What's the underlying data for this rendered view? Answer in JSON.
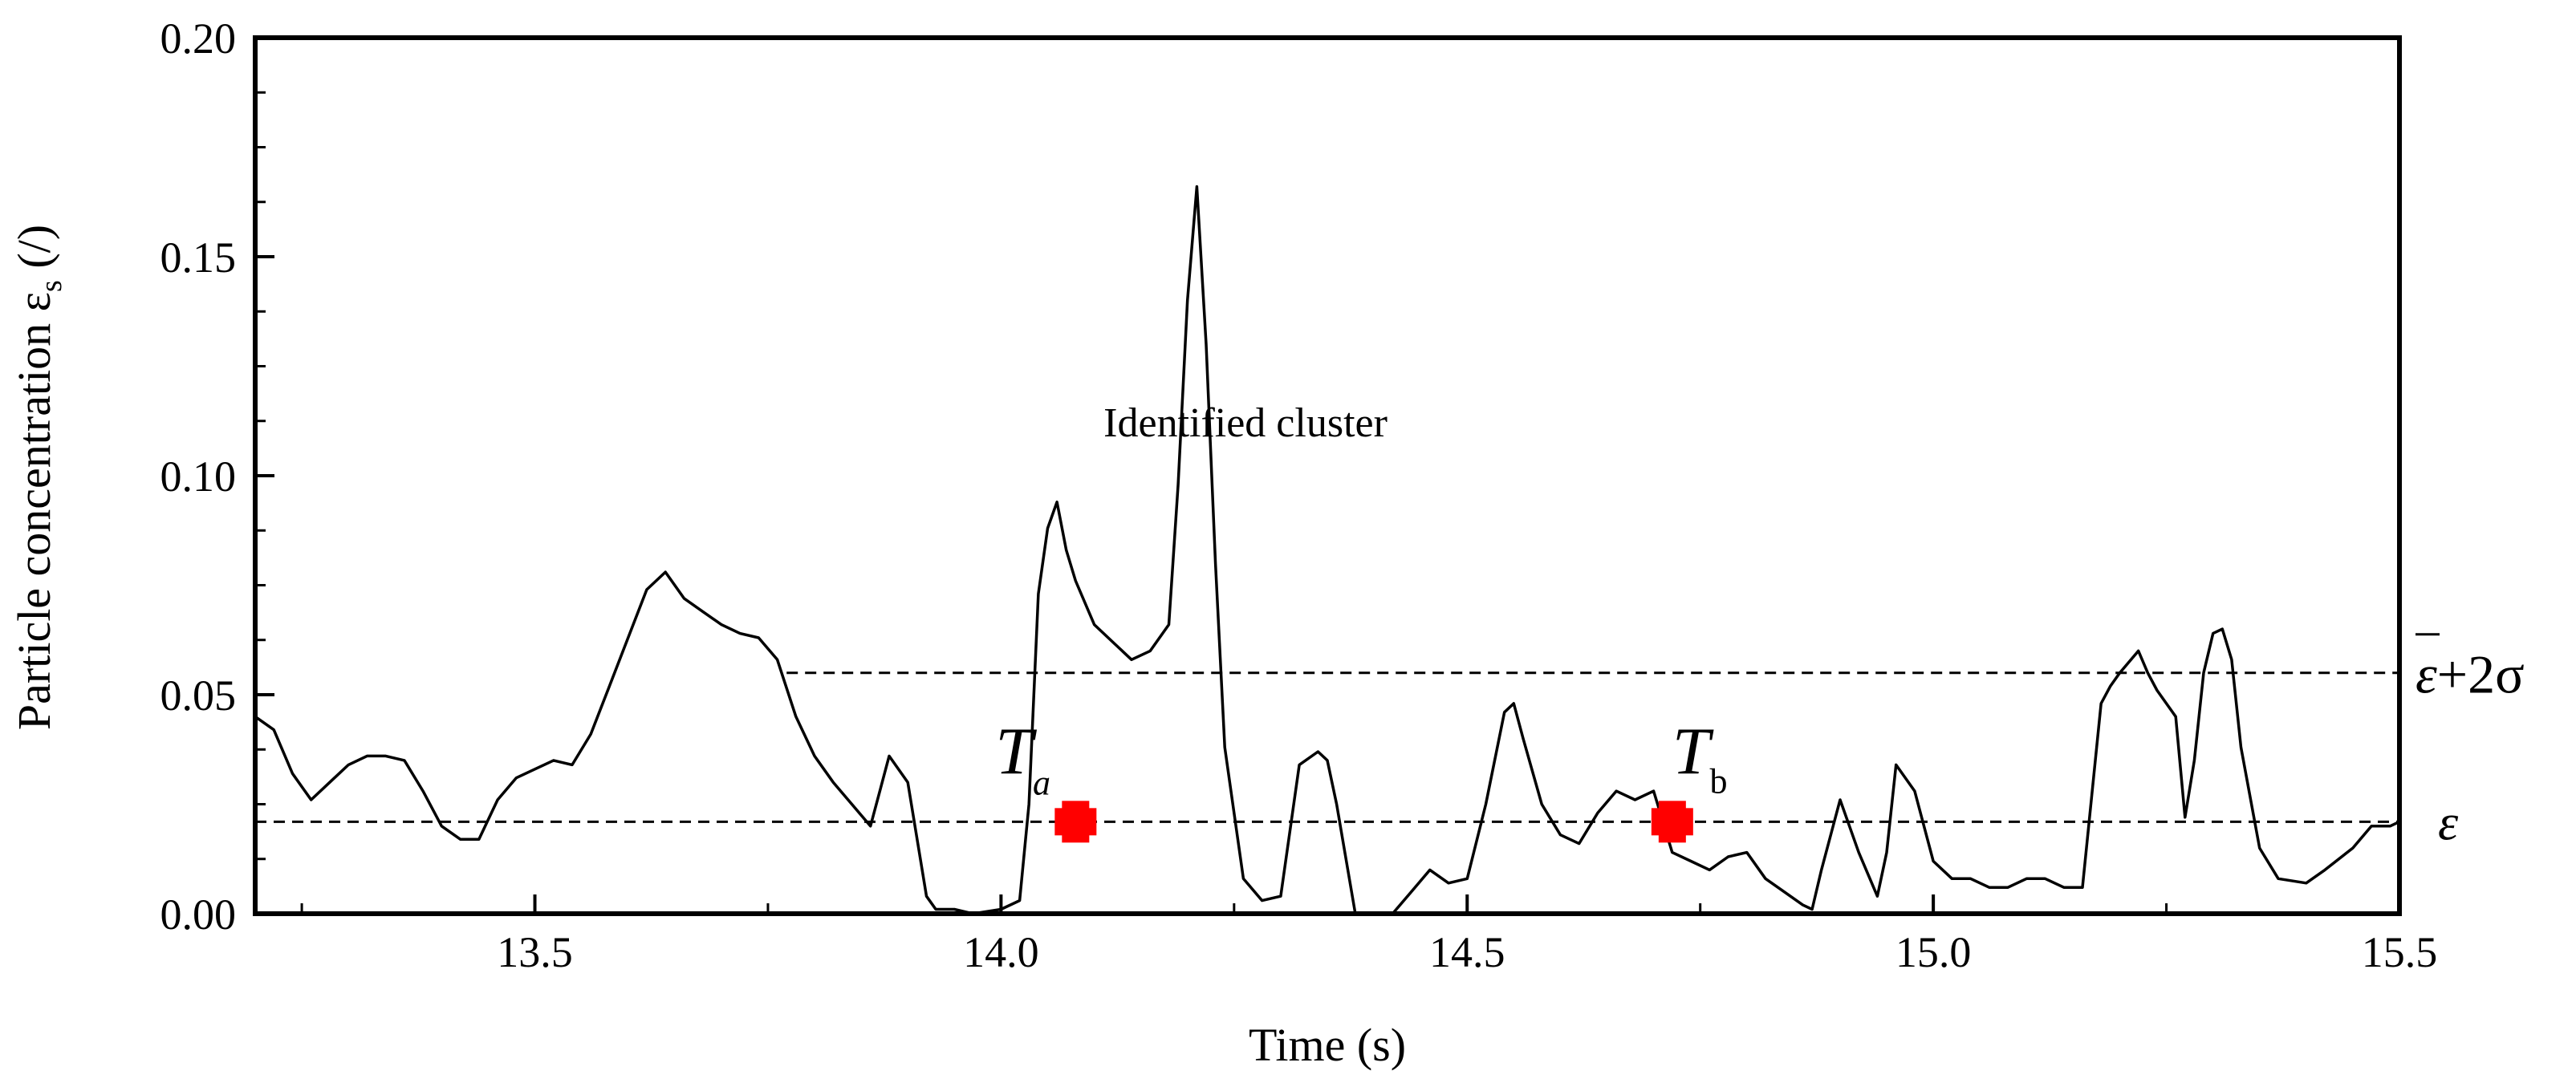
{
  "chart_data": {
    "type": "line",
    "title": "",
    "xlabel": "Time (s)",
    "ylabel": "Particle concentration ε",
    "ylabel_sub": "s",
    "ylabel_unit": " (/)",
    "xlim": [
      13.2,
      15.5
    ],
    "ylim": [
      0.0,
      0.2
    ],
    "x_ticks": [
      13.5,
      14.0,
      14.5,
      15.0,
      15.5
    ],
    "x_tick_labels": [
      "13.5",
      "14.0",
      "14.5",
      "15.0",
      "15.5"
    ],
    "y_ticks": [
      0.0,
      0.05,
      0.1,
      0.15,
      0.2
    ],
    "y_tick_labels": [
      "0.00",
      "0.05",
      "0.10",
      "0.15",
      "0.20"
    ],
    "grid": false,
    "series": [
      {
        "name": "Particle concentration",
        "x": [
          13.2,
          13.22,
          13.24,
          13.26,
          13.28,
          13.3,
          13.32,
          13.34,
          13.36,
          13.38,
          13.4,
          13.42,
          13.44,
          13.46,
          13.48,
          13.5,
          13.52,
          13.54,
          13.56,
          13.58,
          13.6,
          13.62,
          13.64,
          13.66,
          13.68,
          13.7,
          13.72,
          13.74,
          13.76,
          13.78,
          13.8,
          13.82,
          13.84,
          13.86,
          13.87,
          13.88,
          13.9,
          13.92,
          13.93,
          13.95,
          13.97,
          14.0,
          14.02,
          14.03,
          14.04,
          14.05,
          14.06,
          14.07,
          14.08,
          14.1,
          14.12,
          14.14,
          14.16,
          14.18,
          14.19,
          14.2,
          14.21,
          14.22,
          14.23,
          14.24,
          14.26,
          14.28,
          14.3,
          14.32,
          14.34,
          14.35,
          14.36,
          14.38,
          14.4,
          14.42,
          14.44,
          14.46,
          14.48,
          14.5,
          14.52,
          14.54,
          14.55,
          14.56,
          14.58,
          14.6,
          14.62,
          14.64,
          14.66,
          14.68,
          14.7,
          14.72,
          14.74,
          14.76,
          14.78,
          14.8,
          14.82,
          14.84,
          14.86,
          14.87,
          14.88,
          14.9,
          14.92,
          14.94,
          14.95,
          14.96,
          14.98,
          15.0,
          15.02,
          15.04,
          15.06,
          15.08,
          15.1,
          15.12,
          15.14,
          15.16,
          15.18,
          15.19,
          15.2,
          15.22,
          15.23,
          15.24,
          15.26,
          15.27,
          15.28,
          15.29,
          15.3,
          15.31,
          15.32,
          15.33,
          15.35,
          15.37,
          15.4,
          15.42,
          15.45,
          15.47,
          15.49,
          15.5
        ],
        "y": [
          0.045,
          0.042,
          0.032,
          0.026,
          0.03,
          0.034,
          0.036,
          0.036,
          0.035,
          0.028,
          0.02,
          0.017,
          0.017,
          0.026,
          0.031,
          0.033,
          0.035,
          0.034,
          0.041,
          0.052,
          0.063,
          0.074,
          0.078,
          0.072,
          0.069,
          0.066,
          0.064,
          0.063,
          0.058,
          0.045,
          0.036,
          0.03,
          0.025,
          0.02,
          0.028,
          0.036,
          0.03,
          0.004,
          0.001,
          0.001,
          0.0,
          0.001,
          0.003,
          0.025,
          0.073,
          0.088,
          0.094,
          0.083,
          0.076,
          0.066,
          0.062,
          0.058,
          0.06,
          0.066,
          0.098,
          0.14,
          0.166,
          0.13,
          0.08,
          0.038,
          0.008,
          0.003,
          0.004,
          0.034,
          0.037,
          0.035,
          0.025,
          0.0,
          0.0,
          0.0,
          0.005,
          0.01,
          0.007,
          0.008,
          0.025,
          0.046,
          0.048,
          0.04,
          0.025,
          0.018,
          0.016,
          0.023,
          0.028,
          0.026,
          0.028,
          0.014,
          0.012,
          0.01,
          0.013,
          0.014,
          0.008,
          0.005,
          0.002,
          0.001,
          0.01,
          0.026,
          0.014,
          0.004,
          0.014,
          0.034,
          0.028,
          0.012,
          0.008,
          0.008,
          0.006,
          0.006,
          0.008,
          0.008,
          0.006,
          0.006,
          0.048,
          0.052,
          0.055,
          0.06,
          0.055,
          0.051,
          0.045,
          0.022,
          0.035,
          0.055,
          0.064,
          0.065,
          0.058,
          0.038,
          0.015,
          0.008,
          0.007,
          0.01,
          0.015,
          0.02,
          0.02,
          0.021
        ]
      }
    ],
    "reference_lines": [
      {
        "name": "mean",
        "y": 0.021,
        "style": "dashed",
        "x_start": 13.2,
        "label": "ε"
      },
      {
        "name": "mean-plus-2sigma",
        "y": 0.055,
        "style": "dashed",
        "x_start": 13.77,
        "label_main": "ε",
        "label_suffix": "+2σ"
      }
    ],
    "markers": [
      {
        "name": "Ta",
        "x": 14.08,
        "y": 0.021,
        "color": "#ff0000",
        "label_main": "T",
        "label_sub": "a"
      },
      {
        "name": "Tb",
        "x": 14.72,
        "y": 0.021,
        "color": "#ff0000",
        "label_main": "T",
        "label_sub": "b"
      }
    ],
    "annotations": [
      {
        "name": "identified-cluster",
        "text": "Identified cluster",
        "x": 14.11,
        "y": 0.109
      }
    ]
  },
  "colors": {
    "line": "#000000",
    "marker": "#ff0000",
    "background": "#ffffff"
  }
}
